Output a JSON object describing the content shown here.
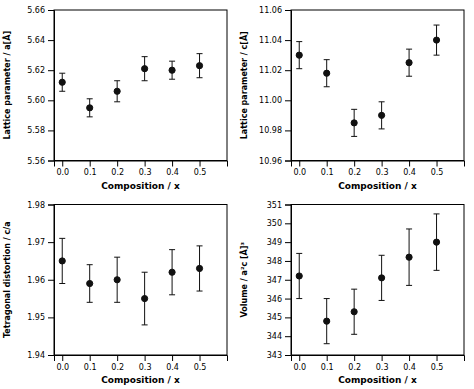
{
  "chart_data": [
    {
      "type": "scatter",
      "xlabel": "Composition / x",
      "ylabel": "Lattice parameter / a[Å]",
      "x": [
        0.0,
        0.1,
        0.2,
        0.3,
        0.4,
        0.5
      ],
      "values": [
        5.612,
        5.595,
        5.606,
        5.621,
        5.62,
        5.623
      ],
      "errors": [
        0.006,
        0.006,
        0.007,
        0.008,
        0.006,
        0.008
      ],
      "xlim": [
        -0.03,
        0.6
      ],
      "xticks": [
        {
          "value": 0.0,
          "label": "0.0"
        },
        0.1,
        0.2,
        0.3,
        0.4,
        0.5
      ],
      "ylim": [
        5.56,
        5.66
      ],
      "yticks": [
        5.56,
        5.58,
        {
          "value": 5.6,
          "label": "5.60"
        },
        5.62,
        5.64,
        5.66
      ],
      "color": "#111111",
      "marker": "circle",
      "grid": false
    },
    {
      "type": "scatter",
      "xlabel": "Composition / x",
      "ylabel": "Lattice parameter / c[Å]",
      "x": [
        0.0,
        0.1,
        0.2,
        0.3,
        0.4,
        0.5
      ],
      "values": [
        11.03,
        11.018,
        10.985,
        10.99,
        11.025,
        11.04
      ],
      "errors": [
        0.009,
        0.009,
        0.009,
        0.009,
        0.009,
        0.01
      ],
      "xlim": [
        -0.03,
        0.6
      ],
      "xticks": [
        {
          "value": 0.0,
          "label": "0.0"
        },
        0.1,
        0.2,
        0.3,
        0.4,
        0.5
      ],
      "ylim": [
        10.96,
        11.06
      ],
      "yticks": [
        10.96,
        10.98,
        {
          "value": 11.0,
          "label": "11.00"
        },
        11.02,
        11.04,
        11.06
      ],
      "color": "#111111",
      "marker": "circle",
      "grid": false
    },
    {
      "type": "scatter",
      "xlabel": "Composition / x",
      "ylabel": "Tetragonal distortion / c/a",
      "x": [
        0.0,
        0.1,
        0.2,
        0.3,
        0.4,
        0.5
      ],
      "values": [
        1.965,
        1.959,
        1.96,
        1.955,
        1.962,
        1.963
      ],
      "errors": [
        0.006,
        0.005,
        0.006,
        0.007,
        0.006,
        0.006
      ],
      "xlim": [
        -0.03,
        0.6
      ],
      "xticks": [
        {
          "value": 0.0,
          "label": "0.0"
        },
        0.1,
        0.2,
        0.3,
        0.4,
        0.5
      ],
      "ylim": [
        1.94,
        1.98
      ],
      "yticks": [
        1.94,
        1.95,
        1.96,
        1.97,
        1.98
      ],
      "color": "#111111",
      "marker": "circle",
      "grid": false
    },
    {
      "type": "scatter",
      "xlabel": "Composition / x",
      "ylabel": "Volume / a²c [Å]³",
      "x": [
        0.0,
        0.1,
        0.2,
        0.3,
        0.4,
        0.5
      ],
      "values": [
        347.2,
        344.8,
        345.3,
        347.1,
        348.2,
        349.0
      ],
      "errors": [
        1.2,
        1.2,
        1.2,
        1.2,
        1.5,
        1.5
      ],
      "xlim": [
        -0.03,
        0.6
      ],
      "xticks": [
        {
          "value": 0.0,
          "label": "0.0"
        },
        0.1,
        0.2,
        0.3,
        0.4,
        0.5
      ],
      "ylim": [
        343,
        351
      ],
      "yticks": [
        343,
        344,
        345,
        346,
        347,
        348,
        349,
        350,
        351
      ],
      "color": "#111111",
      "marker": "circle",
      "grid": false
    }
  ]
}
